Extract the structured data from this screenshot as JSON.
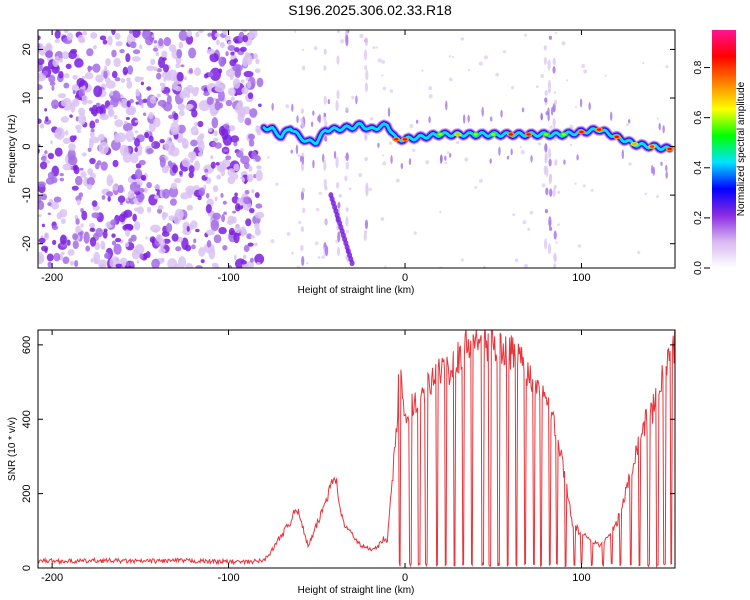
{
  "title": "S196.2025.306.02.33.R18",
  "chart_data": [
    {
      "type": "heatmap",
      "description_of_content": "spectrogram",
      "xlabel": "Height of straight line (km)",
      "ylabel": "Frequency (Hz)",
      "xlim": [
        -208,
        153
      ],
      "ylim": [
        -25,
        24
      ],
      "xticks": [
        -200,
        -100,
        0,
        100
      ],
      "yticks": [
        -20,
        -10,
        0,
        10,
        20
      ],
      "colorbar": {
        "label": "Normalized spectral amplitude",
        "range": [
          0,
          0.95
        ],
        "ticks": [
          0.0,
          0.2,
          0.4,
          0.6,
          0.8
        ],
        "tick_labels": [
          "0.0",
          "0.2",
          "0.4",
          "0.6",
          "0.8"
        ],
        "colors": [
          "#ffffff",
          "#d8b8f0",
          "#8a2be2",
          "#0000ff",
          "#00e5ff",
          "#00ff00",
          "#ffff00",
          "#ff8000",
          "#ff0000",
          "#ff1493"
        ]
      },
      "noise_region": {
        "x_range": [
          -208,
          -82
        ],
        "freq_range": [
          -25,
          24
        ],
        "typical_amplitude": 0.05
      },
      "signal_track": {
        "x": [
          -80,
          -75,
          -70,
          -65,
          -60,
          -55,
          -50,
          -45,
          -40,
          -35,
          -30,
          -25,
          -20,
          -15,
          -10,
          -5,
          0,
          10,
          20,
          30,
          40,
          50,
          60,
          70,
          80,
          90,
          100,
          110,
          120,
          130,
          140,
          150
        ],
        "freq": [
          4,
          3.5,
          2,
          4,
          2,
          1,
          1,
          3.5,
          3.5,
          3.8,
          4,
          4.5,
          3.5,
          4,
          4.5,
          1.5,
          1.5,
          2,
          2.5,
          2.5,
          2.5,
          2.5,
          2.5,
          2.5,
          2.5,
          2.5,
          3,
          3.5,
          2,
          0.5,
          0,
          -0.5
        ],
        "peak_amplitude": [
          0.3,
          0.3,
          0.35,
          0.35,
          0.4,
          0.4,
          0.35,
          0.4,
          0.45,
          0.45,
          0.45,
          0.45,
          0.45,
          0.45,
          0.5,
          0.85,
          0.85,
          0.5,
          0.6,
          0.7,
          0.6,
          0.6,
          0.85,
          0.85,
          0.6,
          0.6,
          0.85,
          0.85,
          0.85,
          0.7,
          0.8,
          0.85
        ]
      },
      "secondary_feature": {
        "x_range": [
          -42,
          -30
        ],
        "freq_range": [
          -24,
          -10
        ]
      },
      "vertical_streaks_x": [
        -58,
        -45,
        -38,
        -33,
        -22,
        80,
        82,
        85
      ]
    },
    {
      "type": "line",
      "xlabel": "Height of straight line (km)",
      "ylabel": "SNR (10 * v/v)",
      "xlim": [
        -208,
        153
      ],
      "ylim": [
        0,
        640
      ],
      "xticks": [
        -200,
        -100,
        0,
        100
      ],
      "yticks": [
        0,
        200,
        400,
        600
      ],
      "color": "#e8353b",
      "series": [
        {
          "name": "SNR",
          "x": [
            -208,
            -190,
            -170,
            -150,
            -130,
            -110,
            -90,
            -80,
            -75,
            -70,
            -65,
            -62,
            -58,
            -55,
            -52,
            -48,
            -45,
            -42,
            -40,
            -38,
            -35,
            -30,
            -25,
            -20,
            -15,
            -12,
            -10,
            -8,
            -5,
            -3,
            -1,
            0,
            2,
            5,
            10,
            15,
            20,
            25,
            30,
            35,
            40,
            45,
            50,
            55,
            60,
            65,
            70,
            75,
            80,
            85,
            90,
            95,
            100,
            105,
            110,
            115,
            120,
            125,
            130,
            135,
            140,
            145,
            150,
            153
          ],
          "y": [
            20,
            18,
            20,
            18,
            20,
            18,
            16,
            20,
            50,
            90,
            120,
            170,
            110,
            60,
            90,
            140,
            180,
            230,
            260,
            200,
            120,
            90,
            60,
            50,
            60,
            80,
            70,
            200,
            350,
            560,
            420,
            380,
            420,
            450,
            470,
            500,
            520,
            540,
            570,
            600,
            620,
            610,
            600,
            590,
            580,
            570,
            520,
            500,
            480,
            380,
            260,
            120,
            90,
            80,
            60,
            80,
            120,
            200,
            300,
            380,
            420,
            500,
            570,
            600
          ]
        }
      ],
      "dropouts_x": [
        -3,
        3,
        8,
        12,
        18,
        23,
        28,
        33,
        38,
        44,
        48,
        53,
        58,
        63,
        68,
        73,
        77,
        82,
        86,
        91,
        96,
        100,
        106,
        112,
        117,
        122,
        128,
        133,
        138,
        143,
        147,
        151
      ]
    }
  ]
}
